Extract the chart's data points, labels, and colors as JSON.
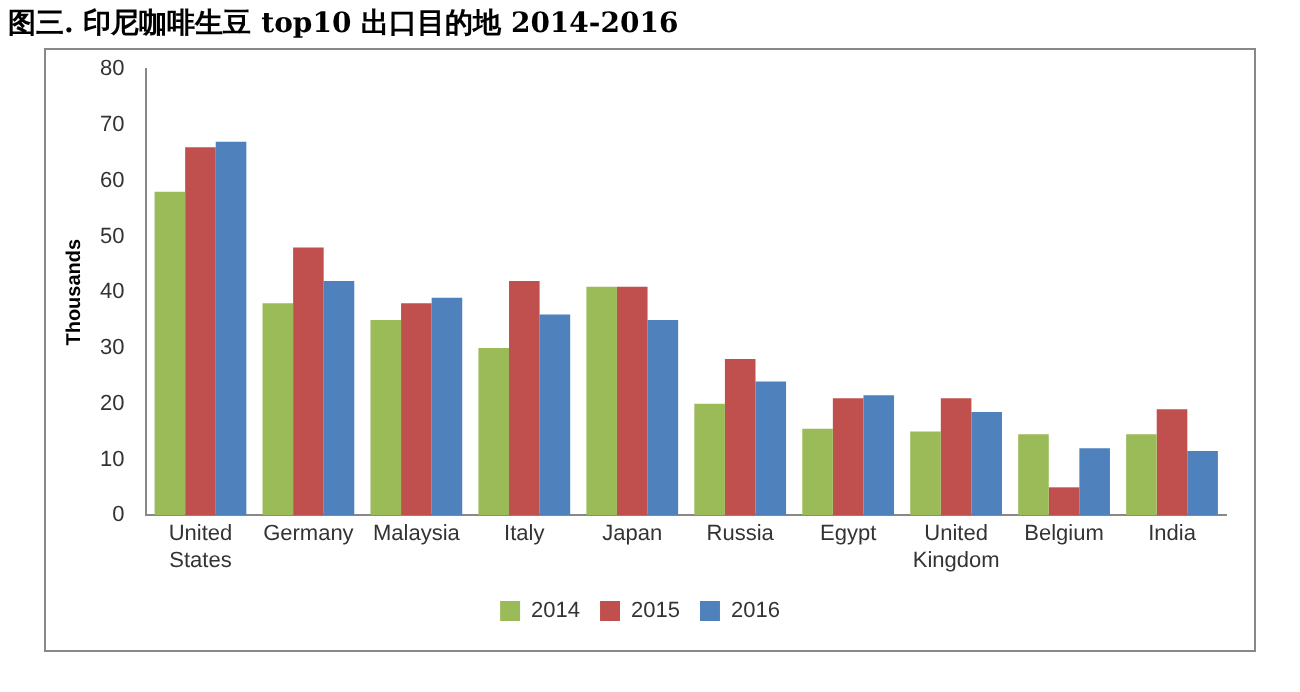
{
  "chart_data": {
    "type": "bar",
    "title": "图三. 印尼咖啡生豆 top10 出口目的地  2014-2016",
    "ylabel": "Thousands",
    "categories": [
      "United States",
      "Germany",
      "Malaysia",
      "Italy",
      "Japan",
      "Russia",
      "Egypt",
      "United Kingdom",
      "Belgium",
      "India"
    ],
    "series": [
      {
        "name": "2014",
        "color": "#9bbb59",
        "values": [
          58,
          38,
          35,
          30,
          41,
          20,
          15.5,
          15,
          14.5,
          14.5
        ]
      },
      {
        "name": "2015",
        "color": "#c0504d",
        "values": [
          66,
          48,
          38,
          42,
          41,
          28,
          21,
          21,
          5,
          19
        ]
      },
      {
        "name": "2016",
        "color": "#4f81bd",
        "values": [
          67,
          42,
          39,
          36,
          35,
          24,
          21.5,
          18.5,
          12,
          11.5
        ]
      }
    ],
    "ylim": [
      0,
      80
    ],
    "yticks": [
      0,
      10,
      20,
      30,
      40,
      50,
      60,
      70,
      80
    ],
    "grid": false,
    "legend": "bottom"
  }
}
